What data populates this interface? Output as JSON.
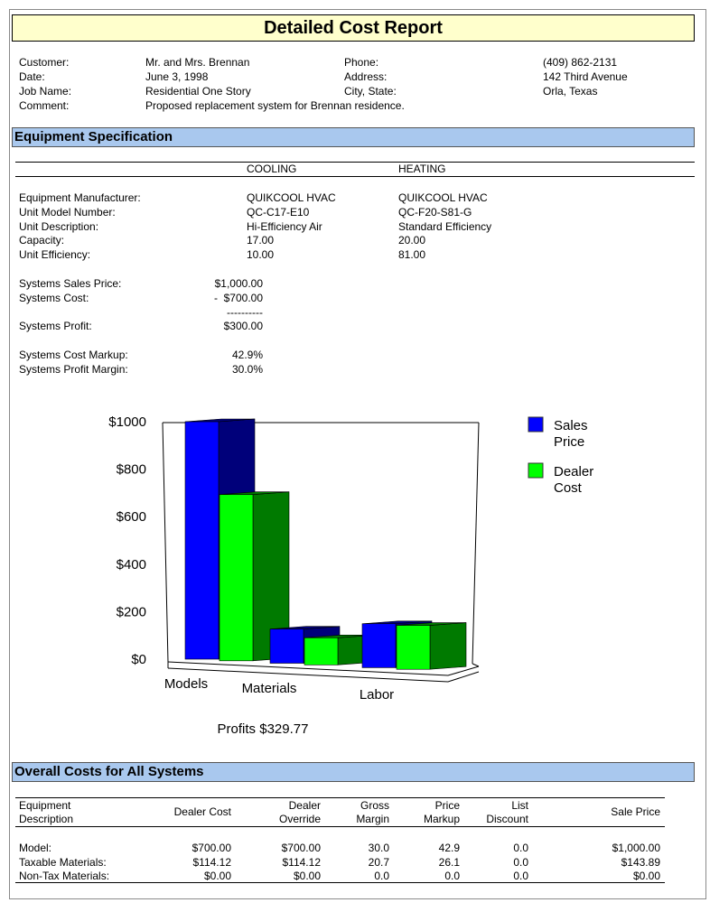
{
  "report": {
    "title": "Detailed Cost Report"
  },
  "customer": {
    "customer_label": "Customer:",
    "customer_value": "Mr. and Mrs. Brennan",
    "date_label": "Date:",
    "date_value": "June 3, 1998",
    "job_label": "Job Name:",
    "job_value": "Residential One Story",
    "comment_label": "Comment:",
    "comment_value": "Proposed replacement system for Brennan residence.",
    "phone_label": "Phone:",
    "phone_value": "(409) 862-2131",
    "address_label": "Address:",
    "address_value": "142 Third Avenue",
    "city_label": "City, State:",
    "city_value": "Orla, Texas"
  },
  "equipment": {
    "section_title": "Equipment Specification",
    "col_cooling": "COOLING",
    "col_heating": "HEATING",
    "rows": [
      {
        "label": "Equipment Manufacturer:",
        "cooling": "QUIKCOOL HVAC",
        "heating": "QUIKCOOL HVAC"
      },
      {
        "label": "Unit Model Number:",
        "cooling": "QC-C17-E10",
        "heating": "QC-F20-S81-G"
      },
      {
        "label": "Unit Description:",
        "cooling": "Hi-Efficiency Air",
        "heating": "Standard Efficiency"
      },
      {
        "label": "Capacity:",
        "cooling": "17.00",
        "heating": "20.00"
      },
      {
        "label": "Unit Efficiency:",
        "cooling": "10.00",
        "heating": "81.00"
      }
    ],
    "sales_price_label": "Systems Sales Price:",
    "sales_price_value": "$1,000.00",
    "cost_label": "Systems Cost:",
    "cost_value": "-  $700.00",
    "rule": "----------",
    "profit_label": "Systems Profit:",
    "profit_value": "$300.00",
    "markup_label": "Systems Cost Markup:",
    "markup_value": "42.9%",
    "margin_label": "Systems Profit Margin:",
    "margin_value": "30.0%"
  },
  "chart_data": {
    "type": "bar",
    "categories": [
      "Models",
      "Materials",
      "Labor"
    ],
    "series": [
      {
        "name": "Sales Price",
        "values": [
          1000,
          143.89,
          185
        ],
        "color": "#0000ff"
      },
      {
        "name": "Dealer Cost",
        "values": [
          700,
          114.12,
          185
        ],
        "color": "#00ff00"
      }
    ],
    "legend_names": [
      "Sales\nPrice",
      "Dealer\nCost"
    ],
    "y_ticks": [
      "$1000",
      "$800",
      "$600",
      "$400",
      "$200",
      "$0"
    ],
    "ylim": [
      0,
      1000
    ],
    "legend_position": "right",
    "caption": "Profits $329.77"
  },
  "overall": {
    "section_title": "Overall Costs for All Systems",
    "headers": {
      "desc": "Equipment\nDescription",
      "dealer_cost": "Dealer Cost",
      "override": "Dealer\nOverride",
      "gross": "Gross\nMargin",
      "markup": "Price\nMarkup",
      "discount": "List\nDiscount",
      "sale": "Sale Price"
    },
    "rows": [
      {
        "desc": "Model:",
        "dealer_cost": "$700.00",
        "override": "$700.00",
        "gross": "30.0",
        "markup": "42.9",
        "discount": "0.0",
        "sale": "$1,000.00"
      },
      {
        "desc": "Taxable Materials:",
        "dealer_cost": "$114.12",
        "override": "$114.12",
        "gross": "20.7",
        "markup": "26.1",
        "discount": "0.0",
        "sale": "$143.89"
      },
      {
        "desc": "Non-Tax Materials:",
        "dealer_cost": "$0.00",
        "override": "$0.00",
        "gross": "0.0",
        "markup": "0.0",
        "discount": "0.0",
        "sale": "$0.00"
      }
    ]
  }
}
